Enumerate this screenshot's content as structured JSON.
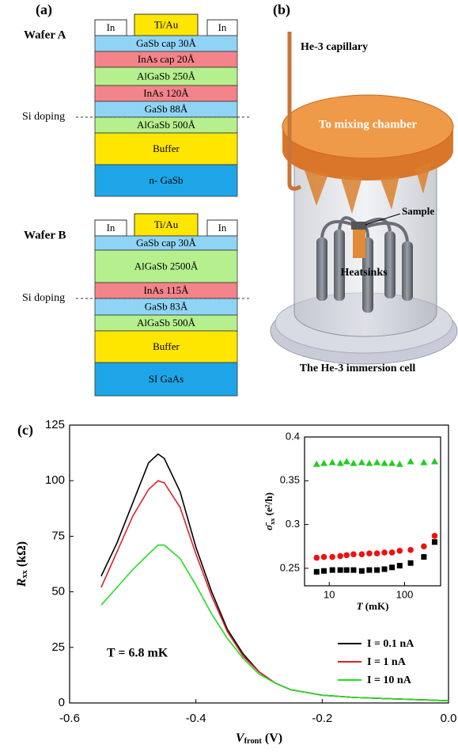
{
  "panel_a": {
    "label": "(a)",
    "wafers": [
      {
        "name": "Wafer A",
        "si_doping": "Si doping",
        "contacts": [
          "In",
          "Ti/Au",
          "In"
        ],
        "layers": [
          {
            "label": "GaSb cap 30Å",
            "color": "#8fd4f5"
          },
          {
            "label": "InAs cap 20Å",
            "color": "#f2848a"
          },
          {
            "label": "AlGaSb 250Å",
            "color": "#b6f08e"
          },
          {
            "label": "InAs 120Å",
            "color": "#f2848a"
          },
          {
            "label": "GaSb 88Å",
            "color": "#8fd4f5"
          },
          {
            "label": "AlGaSb 500Å",
            "color": "#b6f08e"
          },
          {
            "label": "Buffer",
            "color": "#ffe600"
          },
          {
            "label": "n- GaSb",
            "color": "#1ea5e8"
          }
        ]
      },
      {
        "name": "Wafer B",
        "si_doping": "Si doping",
        "contacts": [
          "In",
          "Ti/Au",
          "In"
        ],
        "layers": [
          {
            "label": "GaSb cap 30Å",
            "color": "#8fd4f5"
          },
          {
            "label": "AlGaSb 2500Å",
            "color": "#b6f08e"
          },
          {
            "label": "InAs 115Å",
            "color": "#f2848a"
          },
          {
            "label": "GaSb 83Å",
            "color": "#8fd4f5"
          },
          {
            "label": "AlGaSb 500Å",
            "color": "#b6f08e"
          },
          {
            "label": "Buffer",
            "color": "#ffe600"
          },
          {
            "label": "SI GaAs",
            "color": "#1ea5e8"
          }
        ]
      }
    ]
  },
  "panel_b": {
    "label": "(b)",
    "capillary": "He-3 capillary",
    "lid": "To mixing chamber",
    "sample": "Sample",
    "heatsinks": "Heatsinks",
    "caption": "The He-3 immersion cell"
  },
  "panel_c_label": "(c)",
  "chart_data": [
    {
      "type": "line",
      "xlabel": {
        "main": "V",
        "sub": "front",
        "unit": " (V)"
      },
      "ylabel": {
        "main": "R",
        "sub": "xx",
        "unit": " (kΩ)"
      },
      "annotation": "T = 6.8 mK",
      "xlim": [
        -0.6,
        0.0
      ],
      "ylim": [
        0,
        125
      ],
      "xticks": [
        -0.6,
        -0.4,
        -0.2,
        {
          "value": 0,
          "label": "0.0"
        }
      ],
      "yticks": [
        0,
        25,
        50,
        75,
        100,
        125
      ],
      "x": [
        -0.55,
        -0.525,
        -0.5,
        -0.475,
        -0.46,
        -0.45,
        -0.425,
        -0.4,
        -0.375,
        -0.35,
        -0.325,
        -0.3,
        -0.275,
        -0.25,
        -0.2,
        -0.15,
        -0.1,
        -0.05,
        0.0
      ],
      "series": [
        {
          "name": "I = 0.1 nA",
          "color": "#000000",
          "values": [
            57,
            72,
            90,
            108,
            112,
            110,
            95,
            70,
            50,
            33,
            22,
            14,
            9,
            6,
            3.5,
            2.5,
            2,
            1.5,
            1
          ]
        },
        {
          "name": "I = 1 nA",
          "color": "#e0202a",
          "values": [
            52,
            68,
            84,
            96,
            100,
            99,
            88,
            67,
            48,
            32,
            21,
            14,
            9,
            6,
            3.5,
            2.5,
            2,
            1.5,
            1
          ]
        },
        {
          "name": "I = 10 nA",
          "color": "#22dd22",
          "values": [
            44,
            52,
            60,
            67,
            71,
            71,
            65,
            53,
            40,
            29,
            20,
            13,
            9,
            6,
            3.5,
            2.5,
            2,
            1.5,
            1
          ]
        }
      ],
      "legend": "lower right"
    },
    {
      "type": "scatter",
      "xscale": "log",
      "xlabel": {
        "main": "T",
        "unit": " (mK)"
      },
      "ylabel": {
        "main": "σ̄",
        "sub": "xx",
        "unit": " (e²/h)"
      },
      "xlim": [
        4.7,
        300
      ],
      "ylim": [
        0.23,
        0.4
      ],
      "xticks": [
        10,
        100
      ],
      "yticks": [
        0.25,
        0.3,
        0.35,
        0.4
      ],
      "x": [
        6.8,
        8.5,
        11,
        14,
        17,
        21,
        27,
        34,
        43,
        54,
        68,
        86,
        120,
        180,
        250
      ],
      "series": [
        {
          "color": "#22cc22",
          "marker": "triangle",
          "values": [
            0.369,
            0.37,
            0.371,
            0.37,
            0.372,
            0.37,
            0.371,
            0.37,
            0.371,
            0.37,
            0.37,
            0.369,
            0.372,
            0.371,
            0.372
          ]
        },
        {
          "color": "#ee1111",
          "marker": "circle",
          "values": [
            0.262,
            0.263,
            0.263,
            0.264,
            0.265,
            0.266,
            0.266,
            0.267,
            0.267,
            0.268,
            0.268,
            0.27,
            0.271,
            0.275,
            0.287
          ]
        },
        {
          "color": "#000000",
          "marker": "square",
          "values": [
            0.246,
            0.247,
            0.248,
            0.248,
            0.248,
            0.248,
            0.247,
            0.248,
            0.248,
            0.249,
            0.251,
            0.253,
            0.256,
            0.263,
            0.28
          ]
        }
      ]
    }
  ]
}
